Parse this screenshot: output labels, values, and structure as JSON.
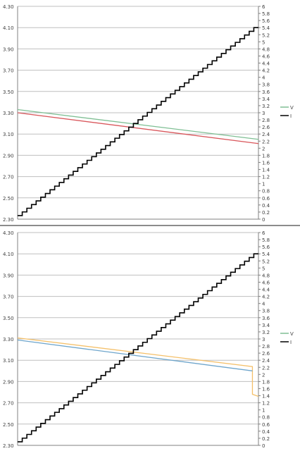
{
  "chart_data": [
    {
      "type": "line",
      "title": "",
      "xlabel": "",
      "ylabel": "",
      "y_left": {
        "ylim": [
          2.3,
          4.3
        ],
        "ticks": [
          "4.30",
          "4.10",
          "3.90",
          "3.70",
          "3.50",
          "3.30",
          "3.10",
          "2.90",
          "2.70",
          "2.50",
          "2.30"
        ]
      },
      "y_right": {
        "ylim": [
          0,
          6
        ],
        "ticks": [
          "6",
          "5.8",
          "5.6",
          "5.4",
          "5.2",
          "5",
          "4.8",
          "4.6",
          "4.4",
          "4.2",
          "4",
          "3.8",
          "3.6",
          "3.4",
          "3.2",
          "3",
          "2.8",
          "2.6",
          "2.4",
          "2.2",
          "2",
          "1.8",
          "1.6",
          "1.4",
          "1.2",
          "1",
          "0.8",
          "0.6",
          "0.4",
          "0.2",
          "0"
        ]
      },
      "grid": "horizontal at left-axis ticks",
      "legend": {
        "placement": "right",
        "entries": [
          {
            "label": "V",
            "color": "#7fbf94"
          },
          {
            "label": "I",
            "color": "#000000"
          }
        ]
      },
      "series": [
        {
          "axis": "left",
          "color": "#7fbf94",
          "x": [
            0,
            1
          ],
          "values": [
            3.33,
            3.05
          ]
        },
        {
          "axis": "left",
          "color": "#d9575c",
          "x": [
            0,
            1
          ],
          "values": [
            3.3,
            3.01
          ]
        },
        {
          "axis": "right",
          "color": "#000000",
          "step": true,
          "steps": 52,
          "x": [
            0,
            1
          ],
          "values": [
            0.1,
            5.4
          ]
        }
      ]
    },
    {
      "type": "line",
      "title": "",
      "xlabel": "",
      "ylabel": "",
      "y_left": {
        "ylim": [
          2.3,
          4.3
        ],
        "ticks": [
          "4.30",
          "4.10",
          "3.90",
          "3.70",
          "3.50",
          "3.30",
          "3.10",
          "2.90",
          "2.70",
          "2.50",
          "2.30"
        ]
      },
      "y_right": {
        "ylim": [
          0,
          6
        ],
        "ticks": [
          "6",
          "5.8",
          "5.6",
          "5.4",
          "5.2",
          "5",
          "4.8",
          "4.6",
          "4.4",
          "4.2",
          "4",
          "3.8",
          "3.6",
          "3.4",
          "3.2",
          "3",
          "2.8",
          "2.6",
          "2.4",
          "2.2",
          "2",
          "1.8",
          "1.6",
          "1.4",
          "1.2",
          "1",
          "0.8",
          "0.6",
          "0.4",
          "0.2",
          "0"
        ]
      },
      "grid": "horizontal at left-axis ticks",
      "legend": {
        "placement": "right",
        "entries": [
          {
            "label": "V",
            "color": "#7fbf94"
          },
          {
            "label": "I",
            "color": "#000000"
          }
        ]
      },
      "series": [
        {
          "axis": "left",
          "color": "#f4c06a",
          "x": [
            0,
            0.975,
            0.975,
            1
          ],
          "values": [
            3.31,
            3.04,
            2.78,
            2.76
          ]
        },
        {
          "axis": "left",
          "color": "#6fa6cc",
          "x": [
            0,
            0.975
          ],
          "values": [
            3.29,
            3.0
          ]
        },
        {
          "axis": "right",
          "color": "#000000",
          "step": true,
          "steps": 52,
          "x": [
            0,
            1
          ],
          "values": [
            0.1,
            5.4
          ]
        }
      ]
    }
  ]
}
